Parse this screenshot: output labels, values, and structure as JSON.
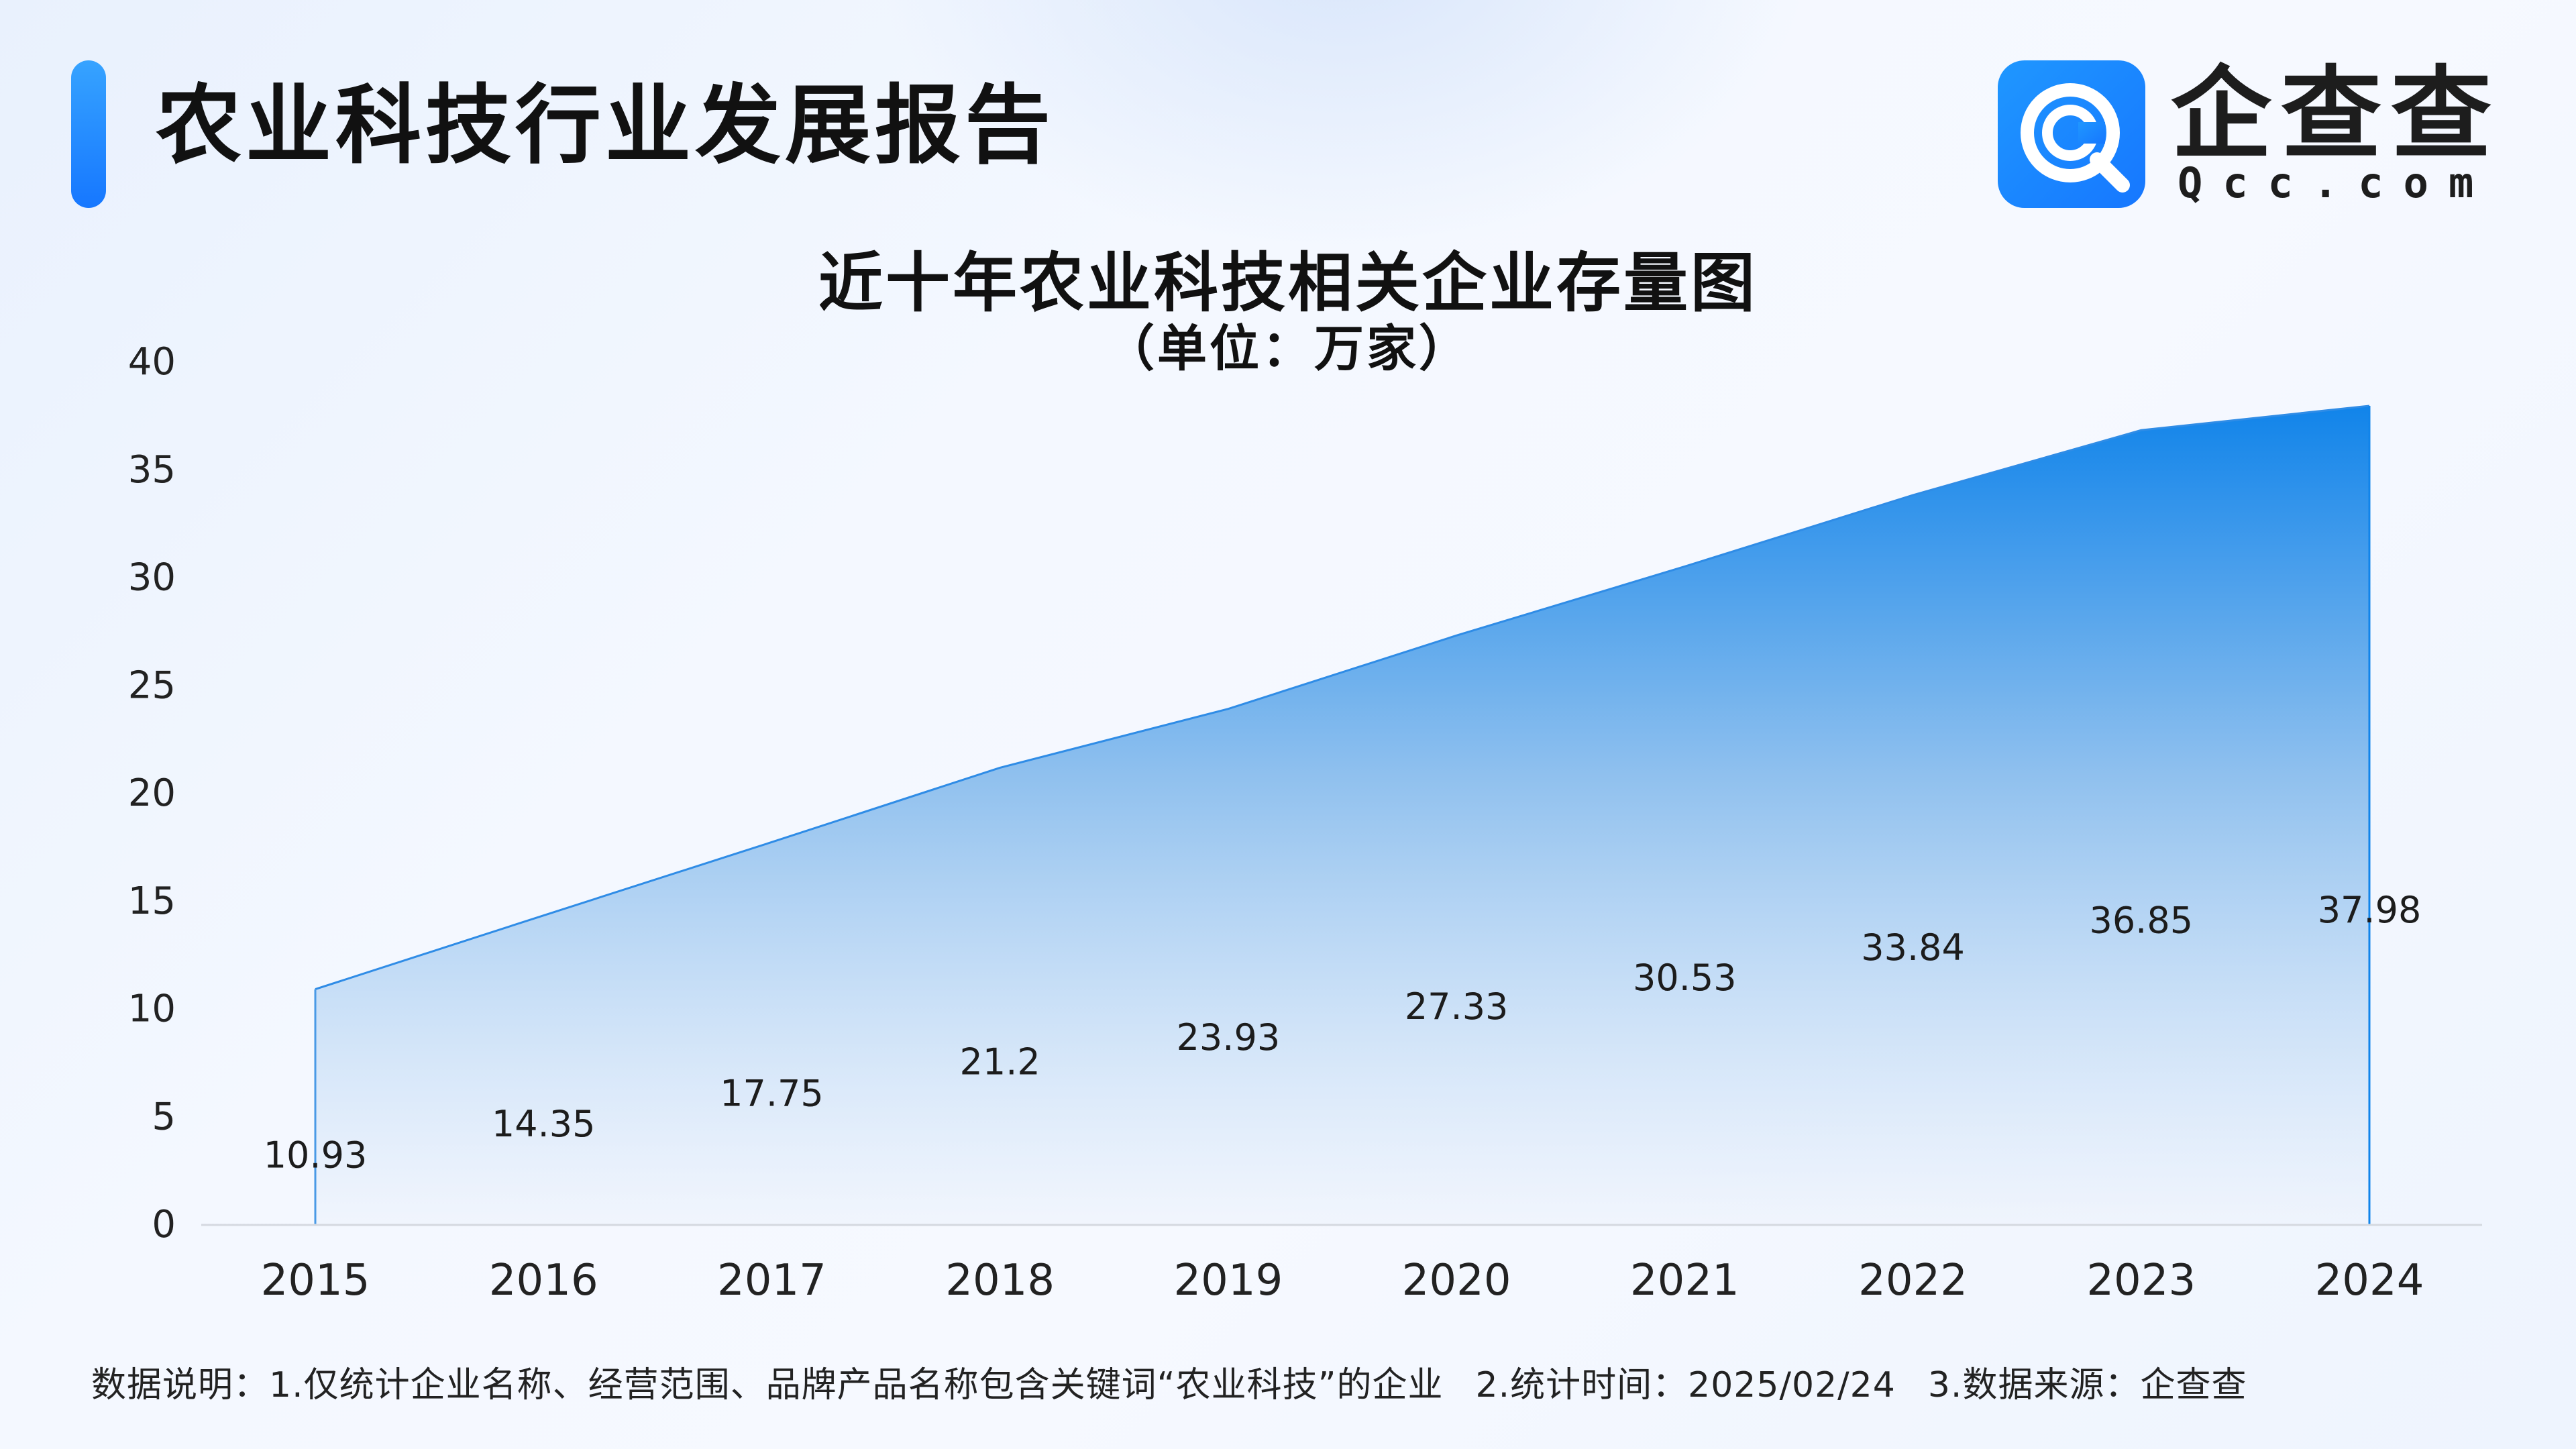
{
  "header": {
    "title": "农业科技行业发展报告"
  },
  "brand": {
    "name_cn": "企查查",
    "name_en": "Qcc.com",
    "icon": "qcc-logo-icon",
    "color": "#1677ff"
  },
  "chart_data": {
    "type": "area",
    "title": "近十年农业科技相关企业存量图",
    "subtitle": "（单位：万家）",
    "categories": [
      "2015",
      "2016",
      "2017",
      "2018",
      "2019",
      "2020",
      "2021",
      "2022",
      "2023",
      "2024"
    ],
    "values": [
      10.93,
      14.35,
      17.75,
      21.2,
      23.93,
      27.33,
      30.53,
      33.84,
      36.85,
      37.98
    ],
    "value_labels": [
      "10.93",
      "14.35",
      "17.75",
      "21.2",
      "23.93",
      "27.33",
      "30.53",
      "33.84",
      "36.85",
      "37.98"
    ],
    "yticks": [
      0,
      5,
      10,
      15,
      20,
      25,
      30,
      35,
      40
    ],
    "ylim": [
      0,
      40
    ],
    "grid": false,
    "fill_color_top": "#1184ea",
    "fill_color_bottom": "#eef3fc"
  },
  "footnote": {
    "label": "数据说明：",
    "item1": "1.仅统计企业名称、经营范围、品牌产品名称包含关键词“农业科技”的企业",
    "item2": "2.统计时间：2025/02/24",
    "item3": "3.数据来源：企查查"
  }
}
